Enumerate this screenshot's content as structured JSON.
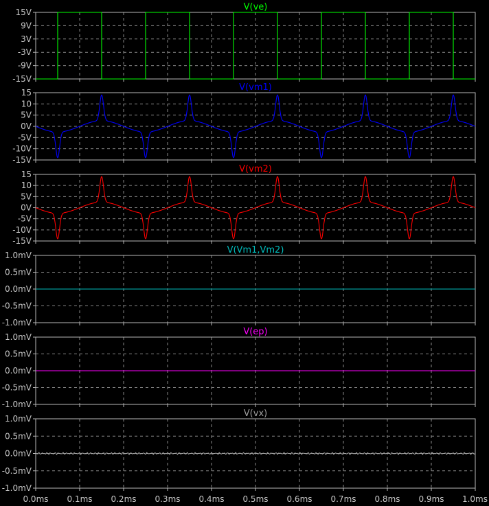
{
  "chart_data": {
    "type": "line",
    "x_axis": {
      "range": [
        0,
        1.0
      ],
      "unit": "ms",
      "tick_labels": [
        "0.0ms",
        "0.1ms",
        "0.2ms",
        "0.3ms",
        "0.4ms",
        "0.5ms",
        "0.6ms",
        "0.7ms",
        "0.8ms",
        "0.9ms",
        "1.0ms"
      ]
    },
    "panels": [
      {
        "id": "ve",
        "title": "V(ve)",
        "color": "#00ff00",
        "ylim": [
          -15,
          15
        ],
        "ytick_labels": [
          "15V",
          "9V",
          "3V",
          "-3V",
          "-9V",
          "-15V"
        ],
        "waveform": {
          "kind": "square",
          "x_ms": [
            0.0,
            0.05,
            0.05,
            0.15,
            0.15,
            0.25,
            0.25,
            0.35,
            0.35,
            0.45,
            0.45,
            0.55,
            0.55,
            0.65,
            0.65,
            0.75,
            0.75,
            0.85,
            0.85,
            0.95,
            0.95,
            1.0
          ],
          "y_V": [
            -15,
            -15,
            15,
            15,
            -15,
            -15,
            15,
            15,
            -15,
            -15,
            15,
            15,
            -15,
            -15,
            15,
            15,
            -15,
            -15,
            15,
            15,
            -15,
            -15
          ]
        }
      },
      {
        "id": "vm1",
        "title": "V(vm1)",
        "color": "#0000ff",
        "ylim": [
          -15,
          15
        ],
        "ytick_labels": [
          "15",
          "10",
          "5V",
          "0V",
          "-5V",
          "-10V",
          "-15V"
        ],
        "waveform": {
          "kind": "spiky-periodic",
          "period_ms": 0.2,
          "positive_peaks_ms": [
            0.15,
            0.35,
            0.55,
            0.75,
            0.95
          ],
          "negative_peaks_ms": [
            0.05,
            0.25,
            0.45,
            0.65,
            0.85
          ],
          "peak_V": 14,
          "zero_crossings_ms": [
            0.0,
            0.1,
            0.2,
            0.3,
            0.4,
            0.5,
            0.6,
            0.7,
            0.8,
            0.9,
            1.0
          ]
        }
      },
      {
        "id": "vm2",
        "title": "V(vm2)",
        "color": "#ff0000",
        "ylim": [
          -15,
          15
        ],
        "ytick_labels": [
          "15",
          "10",
          "5V",
          "0V",
          "-5V",
          "-10V",
          "-15V"
        ],
        "waveform": {
          "kind": "spiky-periodic",
          "period_ms": 0.2,
          "positive_peaks_ms": [
            0.15,
            0.35,
            0.55,
            0.75,
            0.95
          ],
          "negative_peaks_ms": [
            0.05,
            0.25,
            0.45,
            0.65,
            0.85
          ],
          "peak_V": 14,
          "zero_crossings_ms": [
            0.0,
            0.1,
            0.2,
            0.3,
            0.4,
            0.5,
            0.6,
            0.7,
            0.8,
            0.9,
            1.0
          ]
        }
      },
      {
        "id": "vm1_vm2",
        "title": "V(Vm1,Vm2)",
        "color": "#00bcbc",
        "ylim": [
          -1.0,
          1.0
        ],
        "ytick_labels": [
          "1.0mV",
          "0.5mV",
          "0.0mV",
          "-0.5mV",
          "-1.0mV"
        ],
        "waveform": {
          "kind": "flat",
          "value_mV": 0.0
        }
      },
      {
        "id": "ep",
        "title": "V(ep)",
        "color": "#ff00ff",
        "ylim": [
          -1.0,
          1.0
        ],
        "ytick_labels": [
          "1.0mV",
          "0.5mV",
          "0.0mV",
          "-0.5mV",
          "-1.0mV"
        ],
        "waveform": {
          "kind": "flat",
          "value_mV": 0.0
        }
      },
      {
        "id": "vx",
        "title": "V(vx)",
        "color": "#a0a0a0",
        "ylim": [
          -1.0,
          1.0
        ],
        "ytick_labels": [
          "1.0mV",
          "0.5mV",
          "0.0mV",
          "-0.5mV",
          "-1.0mV"
        ],
        "waveform": {
          "kind": "flat-noise",
          "value_mV": 0.0,
          "noise_mV": 0.03
        }
      }
    ],
    "grid": true
  }
}
